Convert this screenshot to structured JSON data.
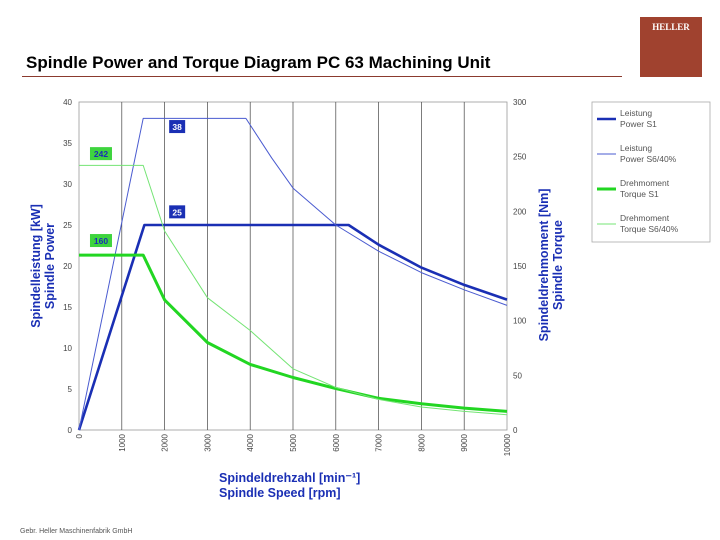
{
  "slide": {
    "title": "Spindle Power and Torque Diagram PC 63 Machining Unit",
    "logo_text": "HELLER",
    "footer": "Gebr. Heller Maschinenfabrik GmbH"
  },
  "chart_data": {
    "type": "line",
    "x": {
      "label_line1": "Spindeldrehzahl [min⁻¹]",
      "label_line2": "Spindle Speed [rpm]",
      "ticks": [
        0,
        1000,
        2000,
        3000,
        4000,
        5000,
        6000,
        7000,
        8000,
        9000,
        10000
      ],
      "lim": [
        0,
        10000
      ]
    },
    "y_left": {
      "label_line1": "Spindelleistung [kW]",
      "label_line2": "Spindle Power",
      "ticks": [
        0,
        5,
        10,
        15,
        20,
        25,
        30,
        35,
        40
      ],
      "lim": [
        0,
        40
      ]
    },
    "y_right": {
      "label_line1": "Spindeldrehmoment [Nm]",
      "label_line2": "Spindle Torque",
      "ticks": [
        0,
        50,
        100,
        150,
        200,
        250,
        300
      ],
      "lim": [
        0,
        300
      ]
    },
    "grid": "vertical",
    "legend_position": "right",
    "series": [
      {
        "name_line1": "Leistung",
        "name_line2": "Power S1",
        "axis": "left",
        "color": "#1a2fb4",
        "width": 2.6,
        "x": [
          0,
          1528,
          6300,
          7000,
          8000,
          9000,
          10000
        ],
        "y": [
          0,
          25,
          25,
          22.6,
          19.8,
          17.7,
          15.9
        ]
      },
      {
        "name_line1": "Leistung",
        "name_line2": "Power S6/40%",
        "axis": "left",
        "color": "#4a5bd0",
        "width": 1.0,
        "x": [
          0,
          1500,
          3900,
          4500,
          5000,
          6000,
          7000,
          8000,
          9000,
          10000
        ],
        "y": [
          0,
          38,
          38,
          33.2,
          29.5,
          25,
          21.8,
          19.2,
          17.1,
          15.2
        ]
      },
      {
        "name_line1": "Drehmoment",
        "name_line2": "Torque S1",
        "axis": "right",
        "color": "#22d622",
        "width": 3.0,
        "x": [
          0,
          1500,
          2000,
          3000,
          4000,
          5000,
          6000,
          7000,
          8000,
          9000,
          10000
        ],
        "y": [
          160,
          160,
          119,
          80,
          60,
          48,
          38,
          29,
          24,
          20,
          17
        ]
      },
      {
        "name_line1": "Drehmoment",
        "name_line2": "Torque S6/40%",
        "axis": "right",
        "color": "#74e474",
        "width": 1.0,
        "x": [
          0,
          1500,
          2000,
          3000,
          4000,
          5000,
          6000,
          7000,
          8000,
          9000,
          10000
        ],
        "y": [
          242,
          242,
          182,
          121,
          91,
          56,
          39,
          28,
          21,
          17,
          14
        ]
      }
    ],
    "annotations": [
      {
        "text": "38",
        "series": 1,
        "x": 2200,
        "y": 36.7,
        "color": "#1a2fb4"
      },
      {
        "text": "25",
        "series": 0,
        "x": 2200,
        "y": 26.3,
        "color": "#1a2fb4"
      },
      {
        "text": "242",
        "series": 3,
        "x": 350,
        "y": 33.4,
        "color": "#3ed43e"
      },
      {
        "text": "160",
        "series": 2,
        "x": 350,
        "y": 22.8,
        "color": "#3ed43e"
      }
    ]
  }
}
